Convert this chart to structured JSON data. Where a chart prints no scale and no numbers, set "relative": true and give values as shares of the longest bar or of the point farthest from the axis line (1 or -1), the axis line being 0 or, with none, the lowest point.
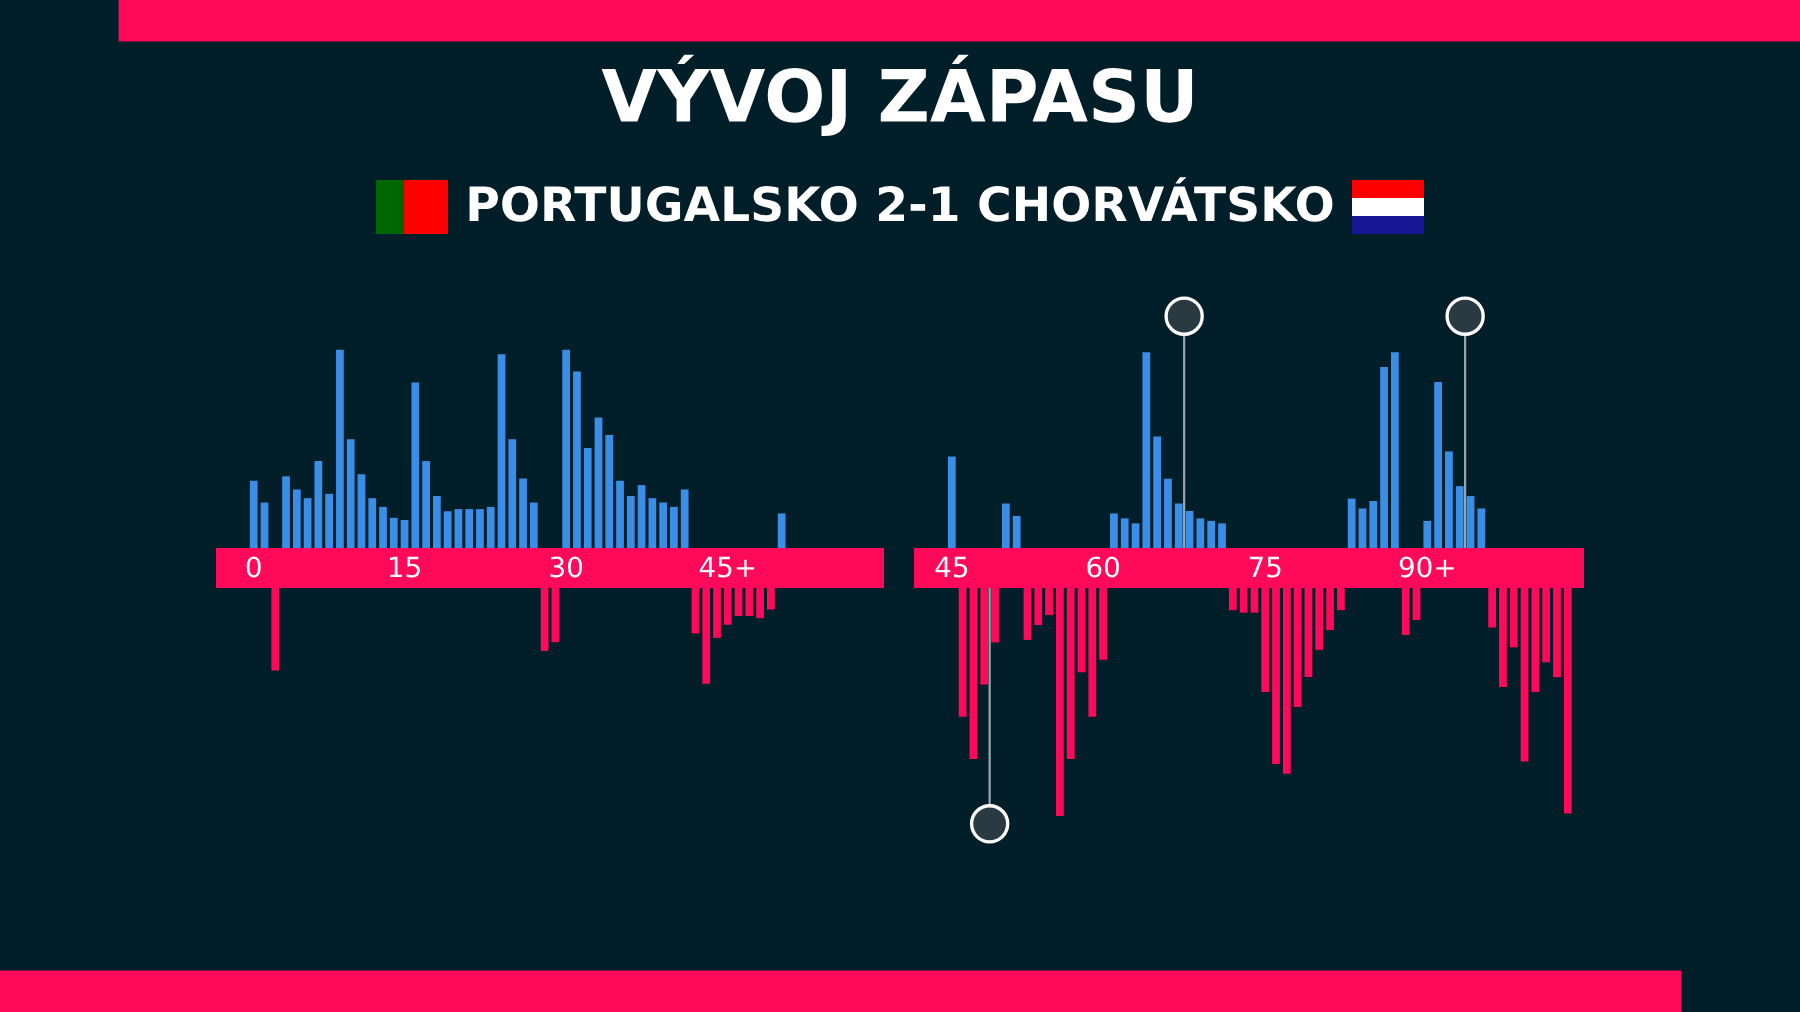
{
  "chart_data": [
    {
      "type": "bar",
      "title": "VÝVOJ ZÁPASU",
      "subtitle": "PORTUGALSKO 2-1 CHORVÁTSKO",
      "relative": true,
      "categories": [
        null,
        null,
        null,
        "0",
        null,
        null,
        null,
        null,
        null,
        null,
        null,
        null,
        null,
        null,
        null,
        null,
        null,
        "15",
        null,
        null,
        null,
        null,
        null,
        null,
        null,
        null,
        null,
        null,
        null,
        null,
        null,
        null,
        "30",
        null,
        null,
        null,
        null,
        null,
        null,
        null,
        null,
        null,
        null,
        null,
        null,
        null,
        null,
        "45+",
        null,
        null,
        null,
        null,
        null,
        null,
        null,
        null,
        null,
        null,
        null,
        null,
        null,
        null
      ],
      "values": [
        null,
        null,
        null,
        0.4,
        0.3,
        -0.47,
        0.42,
        0.36,
        0.32,
        0.49,
        0.34,
        1.0,
        0.59,
        0.43,
        0.32,
        0.28,
        0.23,
        0.22,
        0.85,
        0.49,
        0.33,
        0.26,
        0.27,
        0.27,
        0.27,
        0.28,
        0.98,
        0.59,
        0.41,
        0.3,
        -0.38,
        -0.34,
        1.0,
        0.9,
        0.55,
        0.69,
        0.61,
        0.4,
        0.33,
        0.38,
        0.32,
        0.3,
        0.28,
        0.36,
        -0.3,
        -0.53,
        -0.32,
        -0.26,
        -0.22,
        -0.22,
        -0.23,
        -0.19,
        0.25,
        null,
        null,
        null,
        null,
        null,
        null,
        null,
        null,
        null
      ],
      "colors": [
        "#3a8ee6",
        "#3a8ee6",
        "#3a8ee6",
        "#3a8ee6",
        "#3a8ee6",
        "#ff0a5a",
        "#3a8ee6",
        "#3a8ee6",
        "#3a8ee6",
        "#3a8ee6",
        "#3a8ee6",
        "#3a8ee6",
        "#3a8ee6",
        "#3a8ee6",
        "#3a8ee6",
        "#3a8ee6",
        "#3a8ee6",
        "#3a8ee6",
        "#3a8ee6",
        "#3a8ee6",
        "#3a8ee6",
        "#3a8ee6",
        "#3a8ee6",
        "#3a8ee6",
        "#3a8ee6",
        "#3a8ee6",
        "#3a8ee6",
        "#3a8ee6",
        "#3a8ee6",
        "#3a8ee6",
        "#ff0a5a",
        "#ff0a5a",
        "#3a8ee6",
        "#3a8ee6",
        "#3a8ee6",
        "#3a8ee6",
        "#3a8ee6",
        "#3a8ee6",
        "#3a8ee6",
        "#3a8ee6",
        "#3a8ee6",
        "#3a8ee6",
        "#3a8ee6",
        "#3a8ee6",
        "#ff0a5a",
        "#ff0a5a",
        "#ff0a5a",
        "#ff0a5a",
        "#ff0a5a",
        "#ff0a5a",
        "#ff0a5a",
        "#ff0a5a",
        "#3a8ee6",
        "#3a8ee6",
        "#3a8ee6",
        "#3a8ee6",
        "#3a8ee6",
        "#3a8ee6",
        "#3a8ee6",
        "#3a8ee6",
        "#3a8ee6",
        "#3a8ee6"
      ]
    },
    {
      "type": "bar",
      "relative": true,
      "categories": [
        null,
        null,
        null,
        "45",
        null,
        null,
        null,
        null,
        null,
        null,
        null,
        null,
        null,
        null,
        null,
        null,
        null,
        "60",
        null,
        null,
        null,
        null,
        null,
        null,
        null,
        null,
        null,
        null,
        null,
        null,
        null,
        null,
        "75",
        null,
        null,
        null,
        null,
        null,
        null,
        null,
        null,
        null,
        null,
        null,
        null,
        null,
        null,
        "90+",
        null,
        null,
        null,
        null,
        null,
        null,
        null,
        null,
        null,
        null,
        null,
        null,
        null,
        null
      ],
      "values": [
        null,
        null,
        null,
        0.45,
        -0.6,
        -0.77,
        -0.47,
        -0.3,
        0.26,
        0.21,
        -0.29,
        -0.23,
        -0.19,
        -1.0,
        -0.77,
        -0.42,
        -0.6,
        -0.37,
        0.22,
        0.2,
        0.18,
        0.87,
        0.53,
        0.36,
        0.26,
        0.23,
        0.2,
        0.19,
        0.18,
        -0.17,
        -0.18,
        -0.18,
        -0.5,
        -0.79,
        -0.83,
        -0.56,
        -0.44,
        -0.33,
        -0.25,
        -0.17,
        0.28,
        0.24,
        0.27,
        0.81,
        0.87,
        -0.27,
        -0.21,
        0.19,
        0.75,
        0.47,
        0.33,
        0.29,
        0.24,
        -0.24,
        -0.48,
        -0.32,
        -0.78,
        -0.5,
        -0.38,
        -0.44,
        -0.99,
        null
      ],
      "colors": [
        "#3a8ee6",
        "#3a8ee6",
        "#3a8ee6",
        "#3a8ee6",
        "#ff0a5a",
        "#ff0a5a",
        "#ff0a5a",
        "#ff0a5a",
        "#3a8ee6",
        "#3a8ee6",
        "#ff0a5a",
        "#ff0a5a",
        "#ff0a5a",
        "#ff0a5a",
        "#ff0a5a",
        "#ff0a5a",
        "#ff0a5a",
        "#ff0a5a",
        "#3a8ee6",
        "#3a8ee6",
        "#3a8ee6",
        "#3a8ee6",
        "#3a8ee6",
        "#3a8ee6",
        "#3a8ee6",
        "#3a8ee6",
        "#3a8ee6",
        "#3a8ee6",
        "#3a8ee6",
        "#ff0a5a",
        "#ff0a5a",
        "#ff0a5a",
        "#ff0a5a",
        "#ff0a5a",
        "#ff0a5a",
        "#ff0a5a",
        "#ff0a5a",
        "#ff0a5a",
        "#ff0a5a",
        "#ff0a5a",
        "#3a8ee6",
        "#3a8ee6",
        "#3a8ee6",
        "#3a8ee6",
        "#3a8ee6",
        "#ff0a5a",
        "#ff0a5a",
        "#3a8ee6",
        "#3a8ee6",
        "#3a8ee6",
        "#3a8ee6",
        "#3a8ee6",
        "#3a8ee6",
        "#ff0a5a",
        "#ff0a5a",
        "#ff0a5a",
        "#ff0a5a",
        "#ff0a5a",
        "#ff0a5a",
        "#ff0a5a",
        "#ff0a5a",
        "#3a8ee6"
      ]
    }
  ]
}
